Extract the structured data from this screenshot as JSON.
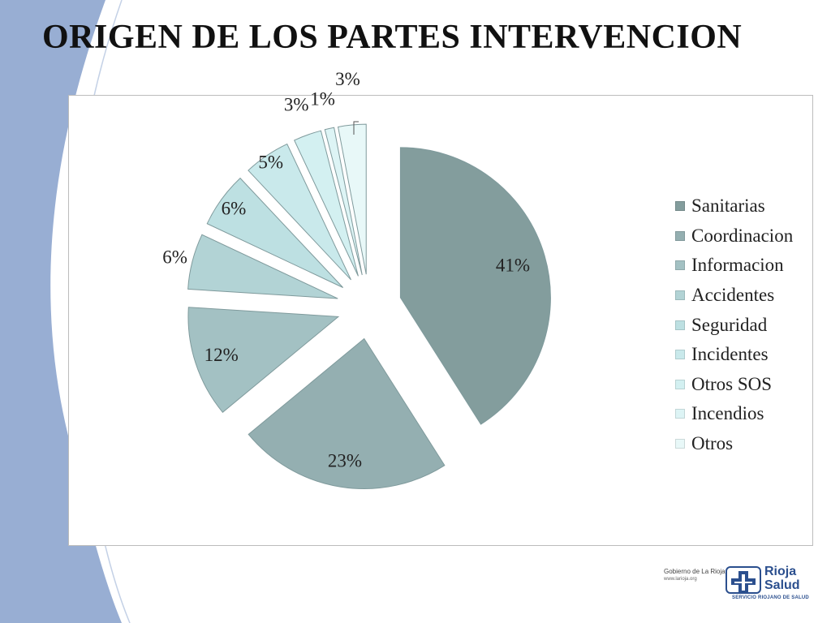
{
  "slide": {
    "title": "ORIGEN DE LOS PARTES INTERVENCION",
    "accent_color": "#98aed3"
  },
  "chart_data": {
    "type": "pie",
    "exploded": true,
    "legend_position": "right",
    "categories": [
      "Sanitarias",
      "Coordinacion",
      "Informacion",
      "Accidentes",
      "Seguridad",
      "Incidentes",
      "Otros SOS",
      "Incendios",
      "Otros"
    ],
    "values": [
      41,
      23,
      12,
      6,
      6,
      5,
      3,
      1,
      3
    ],
    "labels": [
      "41%",
      "23%",
      "12%",
      "6%",
      "6%",
      "5%",
      "3%",
      "1%",
      "3%"
    ],
    "colors": [
      "#839d9d",
      "#94afb1",
      "#a3c1c3",
      "#b2d3d5",
      "#bde0e2",
      "#c9e9eb",
      "#d3f0f1",
      "#ddf4f5",
      "#e8f8f8"
    ]
  },
  "footer": {
    "gov_text": "Gobierno de La Rioja",
    "gov_url": "www.larioja.org",
    "brand_line1": "Rioja",
    "brand_line2": "Salud",
    "brand_sub": "SERVICIO RIOJANO DE SALUD"
  }
}
